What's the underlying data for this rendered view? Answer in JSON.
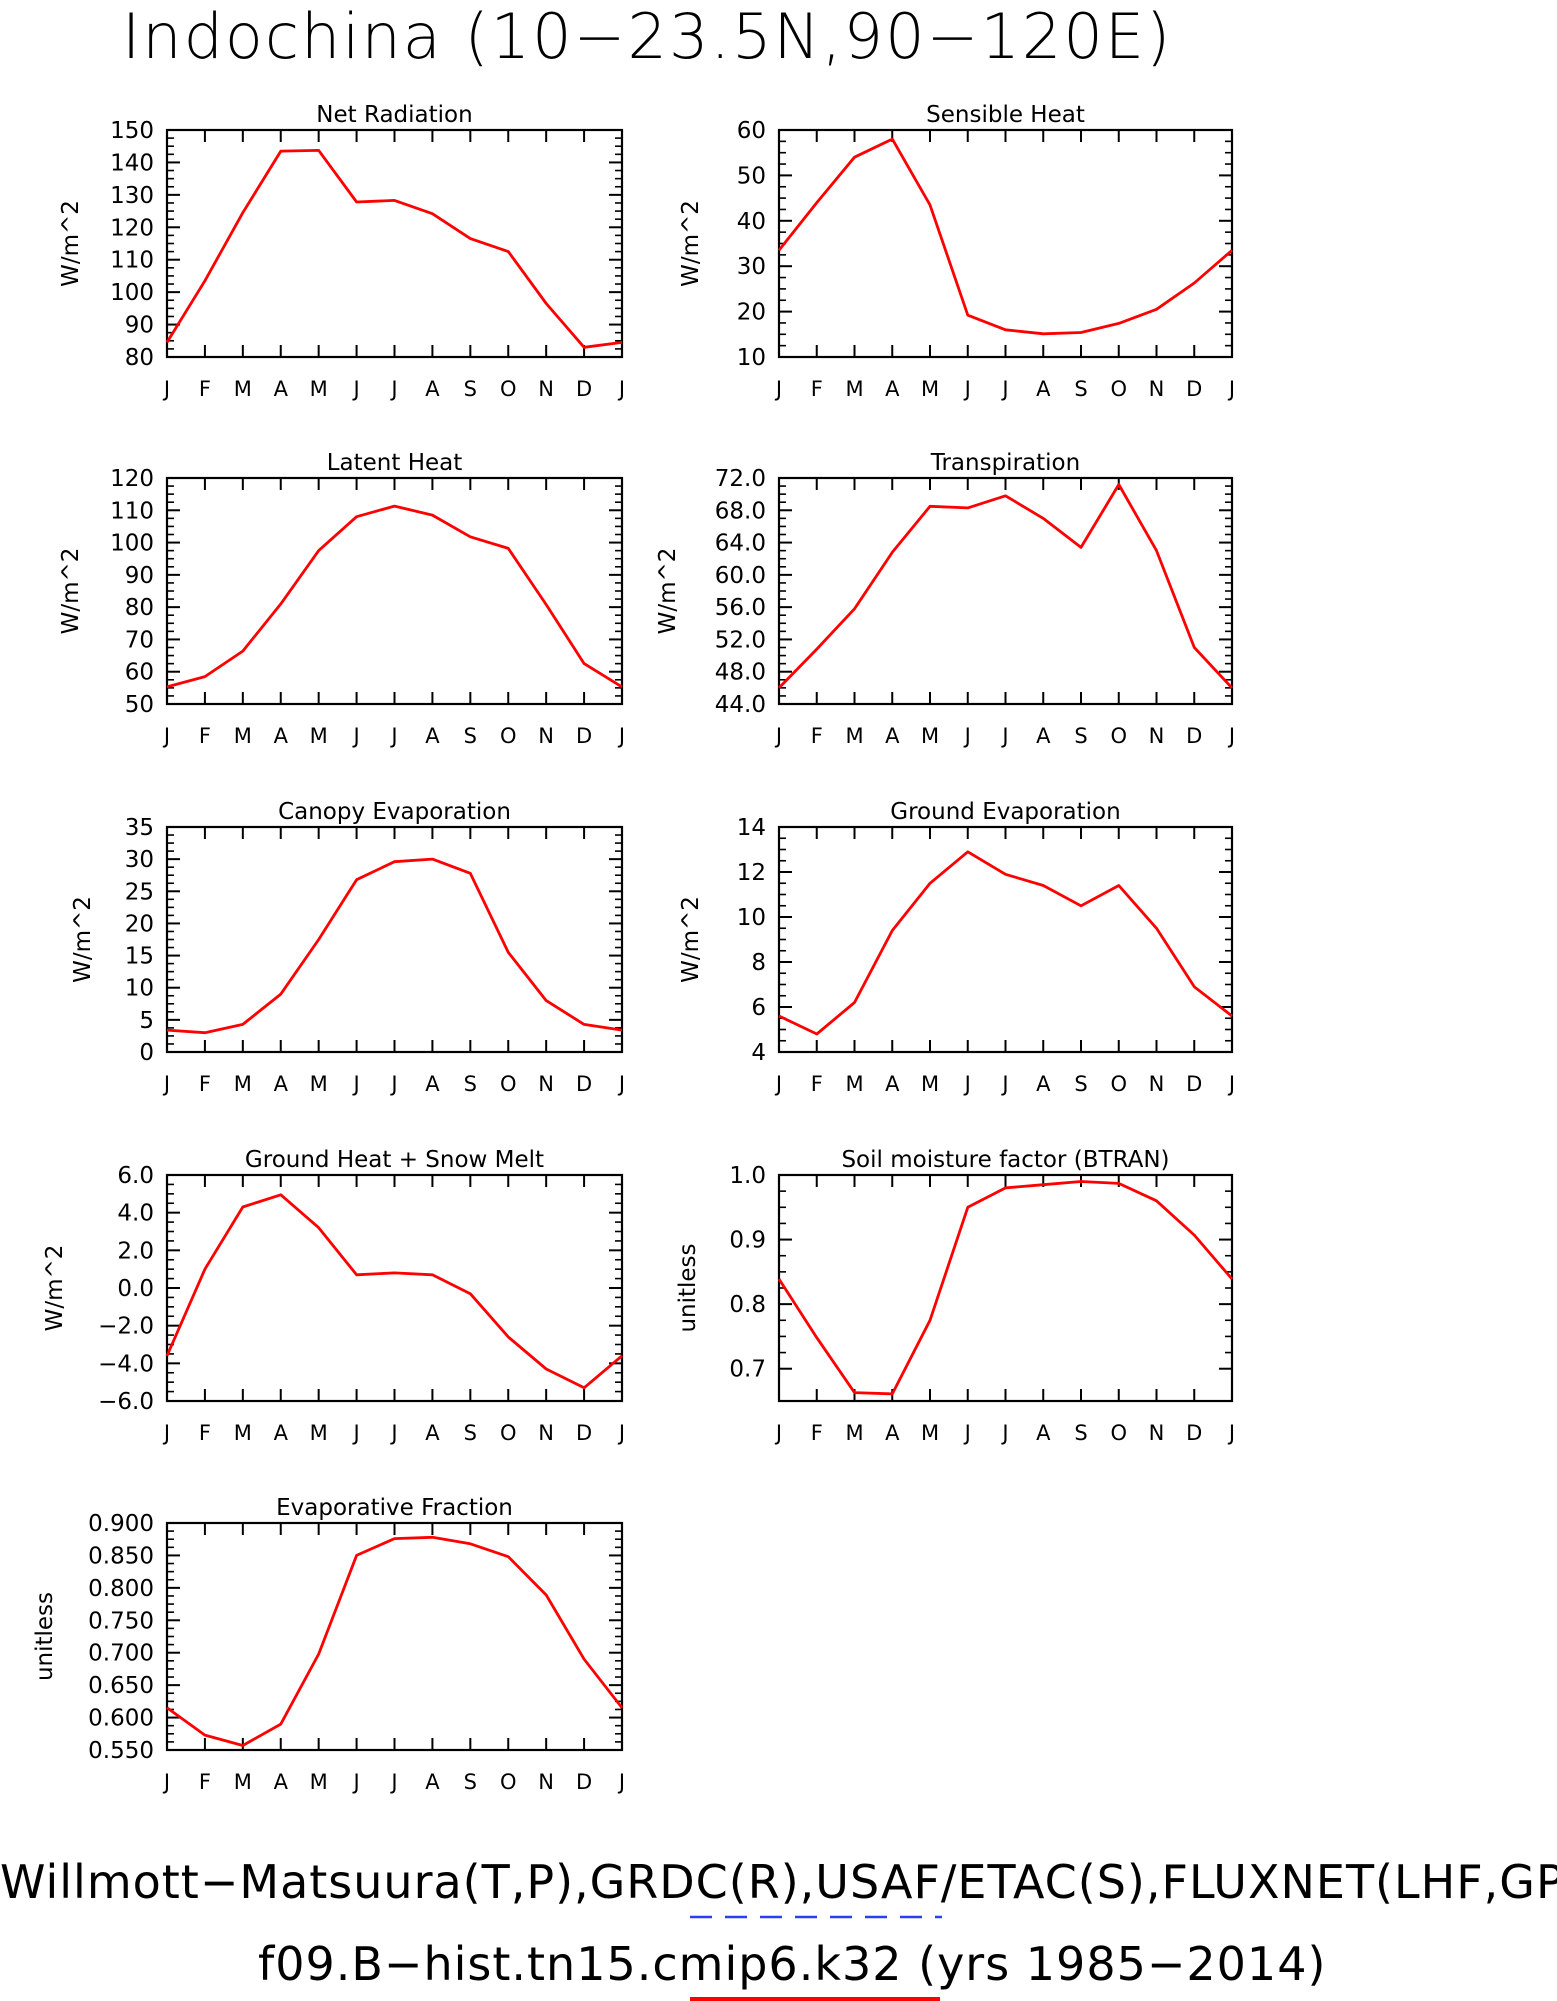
{
  "page": {
    "title": "Indochina (10−23.5N,90−120E)",
    "footer_line1": "Willmott−Matsuura(T,P),GRDC(R),USAF/ETAC(S),FLUXNET(LHF,GPP)",
    "footer_line2": "f09.B−hist.tn15.cmip6.k32 (yrs 1985−2014)",
    "colors": {
      "series": "#ff0000",
      "obs_dash": "#2a3ff0",
      "axis": "#000000"
    }
  },
  "chart_data": [
    {
      "type": "line",
      "title": "Net Radiation",
      "ylabel": "W/m^2",
      "x": [
        "J",
        "F",
        "M",
        "A",
        "M",
        "J",
        "J",
        "A",
        "S",
        "O",
        "N",
        "D",
        "J"
      ],
      "ylim": [
        80,
        150
      ],
      "yticks": [
        "80",
        "90",
        "100",
        "110",
        "120",
        "130",
        "140",
        "150"
      ],
      "series": [
        {
          "values": [
            84.5,
            103.5,
            124.5,
            143.5,
            143.7,
            127.8,
            128.3,
            124.2,
            116.5,
            112.5,
            96.5,
            83.0,
            84.5
          ]
        }
      ]
    },
    {
      "type": "line",
      "title": "Sensible Heat",
      "ylabel": "W/m^2",
      "x": [
        "J",
        "F",
        "M",
        "A",
        "M",
        "J",
        "J",
        "A",
        "S",
        "O",
        "N",
        "D",
        "J"
      ],
      "ylim": [
        10,
        60
      ],
      "yticks": [
        "10",
        "20",
        "30",
        "40",
        "50",
        "60"
      ],
      "series": [
        {
          "values": [
            33.5,
            44.0,
            54.0,
            58.0,
            43.5,
            19.2,
            16.0,
            15.1,
            15.4,
            17.4,
            20.5,
            26.3,
            33.5
          ]
        }
      ]
    },
    {
      "type": "line",
      "title": "Latent Heat",
      "ylabel": "W/m^2",
      "x": [
        "J",
        "F",
        "M",
        "A",
        "M",
        "J",
        "J",
        "A",
        "S",
        "O",
        "N",
        "D",
        "J"
      ],
      "ylim": [
        50,
        120
      ],
      "yticks": [
        "50",
        "60",
        "70",
        "80",
        "90",
        "100",
        "110",
        "120"
      ],
      "series": [
        {
          "values": [
            55.3,
            58.5,
            66.4,
            81.0,
            97.5,
            108.0,
            111.3,
            108.5,
            101.8,
            98.2,
            80.8,
            62.5,
            55.3
          ]
        }
      ]
    },
    {
      "type": "line",
      "title": "Transpiration",
      "ylabel": "W/m^2",
      "x": [
        "J",
        "F",
        "M",
        "A",
        "M",
        "J",
        "J",
        "A",
        "S",
        "O",
        "N",
        "D",
        "J"
      ],
      "ylim": [
        44,
        72
      ],
      "yticks": [
        "44.0",
        "48.0",
        "52.0",
        "56.0",
        "60.0",
        "64.0",
        "68.0",
        "72.0"
      ],
      "series": [
        {
          "values": [
            46.0,
            50.8,
            55.8,
            62.8,
            68.5,
            68.3,
            69.8,
            67.0,
            63.4,
            71.2,
            63.0,
            51.0,
            46.0
          ]
        }
      ]
    },
    {
      "type": "line",
      "title": "Canopy Evaporation",
      "ylabel": "W/m^2",
      "x": [
        "J",
        "F",
        "M",
        "A",
        "M",
        "J",
        "J",
        "A",
        "S",
        "O",
        "N",
        "D",
        "J"
      ],
      "ylim": [
        0,
        35
      ],
      "yticks": [
        "0",
        "5",
        "10",
        "15",
        "20",
        "25",
        "30",
        "35"
      ],
      "series": [
        {
          "values": [
            3.4,
            3.0,
            4.3,
            9.0,
            17.5,
            26.8,
            29.6,
            30.0,
            27.8,
            15.5,
            8.0,
            4.3,
            3.4
          ]
        }
      ]
    },
    {
      "type": "line",
      "title": "Ground Evaporation",
      "ylabel": "W/m^2",
      "x": [
        "J",
        "F",
        "M",
        "A",
        "M",
        "J",
        "J",
        "A",
        "S",
        "O",
        "N",
        "D",
        "J"
      ],
      "ylim": [
        4,
        14
      ],
      "yticks": [
        "4",
        "6",
        "8",
        "10",
        "12",
        "14"
      ],
      "series": [
        {
          "values": [
            5.6,
            4.8,
            6.2,
            9.4,
            11.5,
            12.9,
            11.9,
            11.4,
            10.5,
            11.4,
            9.5,
            6.9,
            5.6
          ]
        }
      ]
    },
    {
      "type": "line",
      "title": "Ground Heat + Snow Melt",
      "ylabel": "W/m^2",
      "x": [
        "J",
        "F",
        "M",
        "A",
        "M",
        "J",
        "J",
        "A",
        "S",
        "O",
        "N",
        "D",
        "J"
      ],
      "ylim": [
        -6,
        6
      ],
      "yticks": [
        "−6.0",
        "−4.0",
        "−2.0",
        "0.0",
        "2.0",
        "4.0",
        "6.0"
      ],
      "series": [
        {
          "values": [
            -3.6,
            1.0,
            4.3,
            4.95,
            3.2,
            0.7,
            0.8,
            0.7,
            -0.3,
            -2.6,
            -4.3,
            -5.3,
            -3.6
          ]
        }
      ]
    },
    {
      "type": "line",
      "title": "Soil moisture factor (BTRAN)",
      "ylabel": "unitless",
      "x": [
        "J",
        "F",
        "M",
        "A",
        "M",
        "J",
        "J",
        "A",
        "S",
        "O",
        "N",
        "D",
        "J"
      ],
      "ylim": [
        0.65,
        1.0
      ],
      "yticks": [
        "0.7",
        "0.8",
        "0.9",
        "1.0"
      ],
      "ytick_values": [
        0.7,
        0.8,
        0.9,
        1.0
      ],
      "series": [
        {
          "values": [
            0.839,
            0.748,
            0.663,
            0.661,
            0.775,
            0.95,
            0.98,
            0.985,
            0.99,
            0.987,
            0.96,
            0.907,
            0.839
          ]
        }
      ]
    },
    {
      "type": "line",
      "title": "Evaporative Fraction",
      "ylabel": "unitless",
      "x": [
        "J",
        "F",
        "M",
        "A",
        "M",
        "J",
        "J",
        "A",
        "S",
        "O",
        "N",
        "D",
        "J"
      ],
      "ylim": [
        0.55,
        0.9
      ],
      "yticks": [
        "0.550",
        "0.600",
        "0.650",
        "0.700",
        "0.750",
        "0.800",
        "0.850",
        "0.900"
      ],
      "series": [
        {
          "values": [
            0.615,
            0.573,
            0.557,
            0.59,
            0.698,
            0.85,
            0.876,
            0.878,
            0.868,
            0.848,
            0.789,
            0.69,
            0.615
          ]
        }
      ]
    }
  ]
}
